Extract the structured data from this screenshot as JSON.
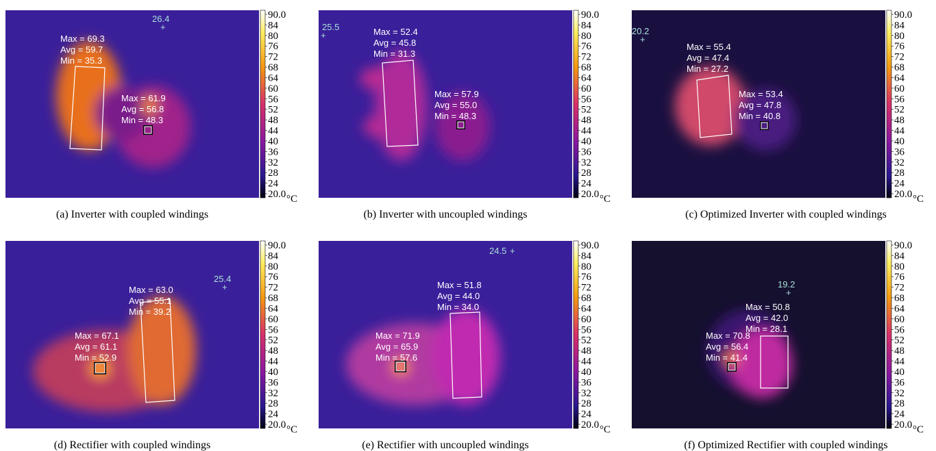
{
  "panels": [
    {
      "caption": "(a) Inverter with coupled windings",
      "spot": "26.4",
      "regions": [
        {
          "lines": [
            "Max = 69.3",
            "Avg = 59.7",
            "Min = 35.3"
          ]
        },
        {
          "lines": [
            "Max = 61.9",
            "Avg = 56.8",
            "Min = 48.3"
          ]
        }
      ]
    },
    {
      "caption": "(b) Inverter with uncoupled windings",
      "spot": "25.5",
      "regions": [
        {
          "lines": [
            "Max = 52.4",
            "Avg = 45.8",
            "Min = 31.3"
          ]
        },
        {
          "lines": [
            "Max = 57.9",
            "Avg = 55.0",
            "Min = 48.3"
          ]
        }
      ]
    },
    {
      "caption": "(c) Optimized Inverter with coupled windings",
      "spot": "20.2",
      "regions": [
        {
          "lines": [
            "Max = 55.4",
            "Avg = 47.4",
            "Min = 27.2"
          ]
        },
        {
          "lines": [
            "Max = 53.4",
            "Avg = 47.8",
            "Min = 40.8"
          ]
        }
      ]
    },
    {
      "caption": "(d) Rectifier with coupled windings",
      "spot": "25.4",
      "regions": [
        {
          "lines": [
            "Max = 63.0",
            "Avg = 55.1",
            "Min = 39.2"
          ]
        },
        {
          "lines": [
            "Max = 67.1",
            "Avg = 61.1",
            "Min = 52.9"
          ]
        }
      ]
    },
    {
      "caption": "(e) Rectifier with uncoupled windings",
      "spot": "24.5",
      "regions": [
        {
          "lines": [
            "Max = 51.8",
            "Avg = 44.0",
            "Min = 34.0"
          ]
        },
        {
          "lines": [
            "Max = 71.9",
            "Avg = 65.9",
            "Min = 57.6"
          ]
        }
      ]
    },
    {
      "caption": "(f) Optimized Rectifier with coupled windings",
      "spot": "19.2",
      "regions": [
        {
          "lines": [
            "Max = 50.8",
            "Avg = 42.0",
            "Min = 28.1"
          ]
        },
        {
          "lines": [
            "Max = 70.8",
            "Avg = 56.4",
            "Min = 41.4"
          ]
        }
      ]
    }
  ],
  "colorbar": {
    "ticks": [
      "90.0",
      "84",
      "80",
      "76",
      "72",
      "68",
      "64",
      "60",
      "56",
      "52",
      "48",
      "44",
      "40",
      "36",
      "32",
      "28",
      "24",
      "20.0"
    ],
    "unit": "°C"
  }
}
